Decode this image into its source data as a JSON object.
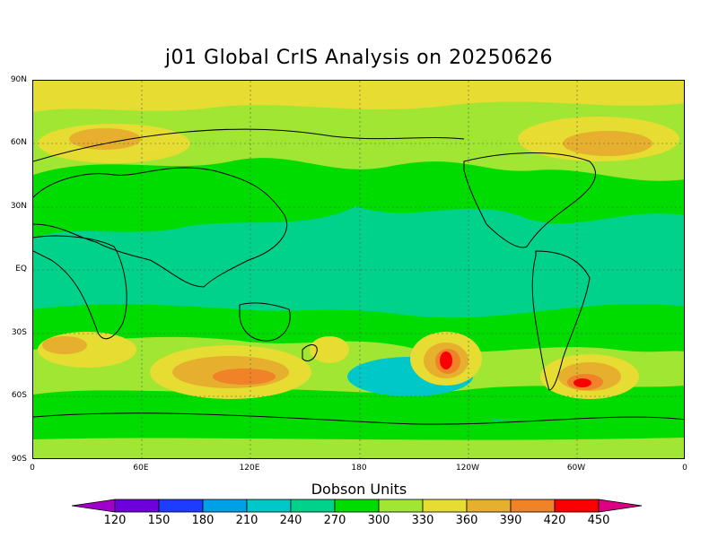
{
  "title": "j01 Global CrIS Analysis on 20250626",
  "axes": {
    "y_labels": [
      "90N",
      "60N",
      "30N",
      "EQ",
      "30S",
      "60S",
      "90S"
    ],
    "x_labels": [
      "0",
      "60E",
      "120E",
      "180",
      "120W",
      "60W",
      "0"
    ]
  },
  "colorbar": {
    "title": "Dobson Units",
    "labels": [
      "120",
      "150",
      "180",
      "210",
      "240",
      "270",
      "300",
      "330",
      "360",
      "390",
      "420",
      "450"
    ],
    "colors": [
      "#a000c8",
      "#6e00dc",
      "#1e3cff",
      "#00a0e6",
      "#00c8c8",
      "#00d28c",
      "#00dc00",
      "#a0e632",
      "#e6dc32",
      "#e6af2d",
      "#f08228",
      "#fa0000",
      "#dc0082"
    ]
  },
  "map_colors": {
    "c300": "#00dc00",
    "c330": "#a0e632",
    "c360": "#e6dc32",
    "c390": "#e6af2d",
    "c420": "#f08228",
    "c450": "#fa0000",
    "c270": "#00d28c",
    "c240": "#00c8c8"
  }
}
